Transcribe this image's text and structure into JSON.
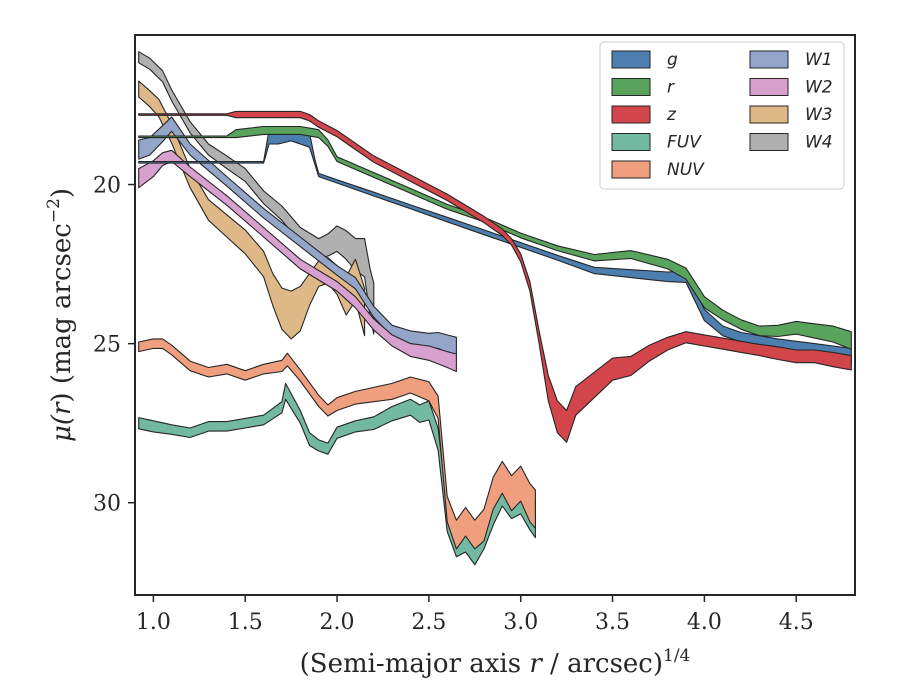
{
  "chart_data": {
    "type": "area",
    "title": "",
    "xlabel": "(Semi-major axis r / arcsec)^1/4",
    "xlabel_parts": {
      "text": "(Semi-major axis ",
      "var": "r",
      "mid": " / arcsec)",
      "sup": "1/4"
    },
    "ylabel": "μ(r) (mag arcsec^−2)",
    "ylabel_parts": {
      "mu": "μ(",
      "var": "r",
      "rest": ") (mag arcsec",
      "sup": "−2",
      "close": ")"
    },
    "xlim": [
      0.9,
      4.82
    ],
    "ylim": [
      32.9,
      15.3
    ],
    "y_inverted": true,
    "grid": false,
    "legend_placement": "top-right",
    "x_ticks": [
      1.0,
      1.5,
      2.0,
      2.5,
      3.0,
      3.5,
      4.0,
      4.5
    ],
    "x_tick_labels": [
      "1.0",
      "1.5",
      "2.0",
      "2.5",
      "3.0",
      "3.5",
      "4.0",
      "4.5"
    ],
    "y_ticks": [
      20,
      25,
      30
    ],
    "y_tick_labels": [
      "20",
      "25",
      "30"
    ],
    "series": [
      {
        "name": "W4",
        "color": "#b0b0b0",
        "x": [
          0.92,
          0.98,
          1.05,
          1.1,
          1.2,
          1.3,
          1.4,
          1.5,
          1.6,
          1.7,
          1.8,
          1.9,
          1.95,
          2.0,
          2.05,
          2.1,
          2.15,
          2.18,
          2.2
        ],
        "y": [
          16.0,
          16.2,
          16.6,
          17.2,
          18.2,
          18.9,
          19.3,
          19.7,
          20.4,
          20.9,
          21.6,
          22.0,
          21.9,
          21.7,
          21.9,
          22.2,
          22.3,
          23.4,
          23.9
        ],
        "w": [
          0.35,
          0.35,
          0.35,
          0.35,
          0.35,
          0.35,
          0.4,
          0.4,
          0.4,
          0.45,
          0.5,
          0.6,
          0.7,
          0.8,
          0.9,
          1.0,
          1.2,
          1.5,
          1.6
        ]
      },
      {
        "name": "W3",
        "color": "#deb887",
        "x": [
          0.92,
          0.98,
          1.03,
          1.1,
          1.2,
          1.3,
          1.4,
          1.5,
          1.6,
          1.65,
          1.7,
          1.75,
          1.8,
          1.85,
          1.9,
          1.95,
          2.0,
          2.05,
          2.1,
          2.15
        ],
        "y": [
          17.0,
          17.3,
          17.6,
          18.4,
          19.8,
          20.8,
          21.3,
          21.8,
          22.5,
          23.3,
          23.9,
          24.1,
          23.9,
          23.3,
          22.8,
          22.7,
          23.0,
          23.5,
          23.0,
          24.0
        ],
        "w": [
          0.5,
          0.5,
          0.55,
          0.6,
          0.6,
          0.65,
          0.7,
          0.75,
          0.8,
          1.0,
          1.3,
          1.5,
          1.4,
          1.0,
          0.8,
          0.8,
          0.9,
          1.2,
          1.3,
          1.5
        ]
      },
      {
        "name": "W1",
        "color": "#93a5c9",
        "x": [
          0.92,
          0.98,
          1.05,
          1.1,
          1.2,
          1.4,
          1.6,
          1.8,
          2.0,
          2.1,
          2.2,
          2.3,
          2.4,
          2.5,
          2.55,
          2.6,
          2.65
        ],
        "y": [
          18.9,
          18.8,
          18.4,
          18.1,
          18.9,
          19.9,
          20.9,
          21.8,
          22.7,
          23.1,
          24.0,
          24.6,
          24.8,
          24.9,
          24.9,
          25.0,
          25.1
        ],
        "w": [
          0.6,
          0.55,
          0.5,
          0.45,
          0.35,
          0.3,
          0.3,
          0.3,
          0.3,
          0.35,
          0.35,
          0.35,
          0.4,
          0.45,
          0.5,
          0.55,
          0.6
        ]
      },
      {
        "name": "W2",
        "color": "#d8a0cf",
        "x": [
          0.92,
          1.0,
          1.05,
          1.1,
          1.2,
          1.4,
          1.6,
          1.8,
          2.0,
          2.1,
          2.2,
          2.3,
          2.4,
          2.5,
          2.6,
          2.65
        ],
        "y": [
          19.8,
          19.5,
          19.2,
          19.1,
          19.6,
          20.5,
          21.5,
          22.5,
          23.2,
          23.7,
          24.4,
          24.9,
          25.2,
          25.3,
          25.5,
          25.6
        ],
        "w": [
          0.6,
          0.5,
          0.4,
          0.35,
          0.3,
          0.3,
          0.3,
          0.3,
          0.3,
          0.35,
          0.35,
          0.35,
          0.4,
          0.45,
          0.5,
          0.55
        ]
      },
      {
        "name": "FUV",
        "color": "#73b8a1",
        "x": [
          0.92,
          1.0,
          1.1,
          1.2,
          1.3,
          1.4,
          1.5,
          1.6,
          1.7,
          1.72,
          1.8,
          1.85,
          1.9,
          1.95,
          2.0,
          2.1,
          2.2,
          2.3,
          2.4,
          2.45,
          2.5,
          2.55,
          2.6,
          2.65,
          2.7,
          2.75,
          2.8,
          2.85,
          2.9,
          2.95,
          3.0,
          3.05,
          3.08
        ],
        "y": [
          27.5,
          27.6,
          27.7,
          27.8,
          27.6,
          27.6,
          27.5,
          27.4,
          27.0,
          26.5,
          27.3,
          28.0,
          28.2,
          28.3,
          27.8,
          27.6,
          27.5,
          27.2,
          27.0,
          27.2,
          27.1,
          28.0,
          30.5,
          31.3,
          31.1,
          31.5,
          31.0,
          30.2,
          29.6,
          30.0,
          29.8,
          30.3,
          30.5
        ],
        "w": [
          0.35,
          0.35,
          0.3,
          0.3,
          0.3,
          0.3,
          0.3,
          0.3,
          0.35,
          0.5,
          0.4,
          0.4,
          0.35,
          0.35,
          0.35,
          0.35,
          0.4,
          0.45,
          0.5,
          0.55,
          0.6,
          0.7,
          0.8,
          0.8,
          0.9,
          0.9,
          0.9,
          1.0,
          1.0,
          1.0,
          1.1,
          1.1,
          1.2
        ]
      },
      {
        "name": "NUV",
        "color": "#ef9f7e",
        "x": [
          0.92,
          1.0,
          1.05,
          1.1,
          1.2,
          1.3,
          1.4,
          1.5,
          1.6,
          1.7,
          1.73,
          1.8,
          1.85,
          1.9,
          1.95,
          2.0,
          2.1,
          2.2,
          2.3,
          2.4,
          2.45,
          2.5,
          2.55,
          2.6,
          2.65,
          2.7,
          2.75,
          2.8,
          2.85,
          2.9,
          2.95,
          3.0,
          3.05,
          3.08
        ],
        "y": [
          25.1,
          25.0,
          25.0,
          25.2,
          25.7,
          25.9,
          25.8,
          26.0,
          25.8,
          25.7,
          25.5,
          26.0,
          26.4,
          26.8,
          27.1,
          26.9,
          26.7,
          26.6,
          26.5,
          26.3,
          26.4,
          26.5,
          27.0,
          30.2,
          31.0,
          30.6,
          31.0,
          30.7,
          29.7,
          29.2,
          29.7,
          29.4,
          30.0,
          30.2
        ],
        "w": [
          0.3,
          0.3,
          0.3,
          0.3,
          0.3,
          0.3,
          0.3,
          0.3,
          0.3,
          0.35,
          0.4,
          0.35,
          0.35,
          0.35,
          0.35,
          0.4,
          0.4,
          0.45,
          0.5,
          0.5,
          0.55,
          0.6,
          0.7,
          0.8,
          0.9,
          0.9,
          0.9,
          1.0,
          1.0,
          1.0,
          1.1,
          1.1,
          1.2,
          1.2
        ]
      },
      {
        "name": "g",
        "color": "#4c7fb0",
        "x": [
          0.92,
          1.0,
          1.2,
          1.4,
          1.6,
          1.63,
          1.68,
          1.75,
          1.8,
          1.85,
          1.88,
          1.9,
          2.0,
          2.2,
          2.4,
          2.6,
          2.8,
          3.0,
          3.2,
          3.4,
          3.6,
          3.8,
          3.9,
          4.0,
          4.1,
          4.2,
          4.3,
          4.4,
          4.5,
          4.6,
          4.7,
          4.8
        ],
        "y": [
          19.3,
          19.3,
          19.3,
          19.3,
          19.3,
          18.5,
          18.5,
          18.4,
          18.5,
          18.6,
          19.3,
          19.7,
          19.9,
          20.3,
          20.7,
          21.1,
          21.5,
          21.9,
          22.3,
          22.7,
          22.8,
          22.9,
          22.9,
          24.1,
          24.6,
          24.8,
          24.9,
          25.0,
          25.1,
          25.2,
          25.3,
          25.4
        ],
        "w": [
          0.05,
          0.05,
          0.05,
          0.05,
          0.05,
          0.45,
          0.45,
          0.45,
          0.45,
          0.45,
          0.15,
          0.1,
          0.1,
          0.12,
          0.12,
          0.14,
          0.15,
          0.15,
          0.15,
          0.2,
          0.25,
          0.3,
          0.35,
          0.35,
          0.3,
          0.3,
          0.3,
          0.3,
          0.35,
          0.4,
          0.45,
          0.5
        ]
      },
      {
        "name": "r",
        "color": "#5aa35d",
        "x": [
          0.92,
          1.0,
          1.2,
          1.4,
          1.45,
          1.6,
          1.8,
          1.9,
          1.95,
          2.0,
          2.2,
          2.4,
          2.6,
          2.8,
          3.0,
          3.2,
          3.4,
          3.6,
          3.8,
          3.9,
          4.0,
          4.1,
          4.2,
          4.3,
          4.4,
          4.5,
          4.6,
          4.7,
          4.8
        ],
        "y": [
          18.5,
          18.5,
          18.5,
          18.5,
          18.4,
          18.3,
          18.3,
          18.4,
          18.7,
          19.2,
          19.7,
          20.2,
          20.7,
          21.1,
          21.6,
          22.0,
          22.3,
          22.2,
          22.5,
          22.8,
          23.7,
          24.1,
          24.4,
          24.6,
          24.6,
          24.5,
          24.6,
          24.7,
          24.9
        ],
        "w": [
          0.05,
          0.05,
          0.05,
          0.05,
          0.25,
          0.25,
          0.25,
          0.25,
          0.2,
          0.15,
          0.15,
          0.15,
          0.15,
          0.15,
          0.15,
          0.15,
          0.2,
          0.25,
          0.3,
          0.35,
          0.35,
          0.3,
          0.3,
          0.3,
          0.35,
          0.4,
          0.45,
          0.5,
          0.55
        ]
      },
      {
        "name": "z",
        "color": "#d1454b",
        "x": [
          0.92,
          1.0,
          1.2,
          1.4,
          1.45,
          1.6,
          1.8,
          1.85,
          1.9,
          2.0,
          2.1,
          2.2,
          2.4,
          2.6,
          2.8,
          2.9,
          2.95,
          3.0,
          3.05,
          3.1,
          3.15,
          3.2,
          3.25,
          3.3,
          3.4,
          3.5,
          3.6,
          3.7,
          3.8,
          3.9,
          4.0,
          4.1,
          4.2,
          4.3,
          4.4,
          4.5,
          4.6,
          4.7,
          4.8
        ],
        "y": [
          17.8,
          17.8,
          17.8,
          17.8,
          17.8,
          17.8,
          17.8,
          17.9,
          18.1,
          18.4,
          18.8,
          19.2,
          19.8,
          20.4,
          21.1,
          21.5,
          21.8,
          22.3,
          23.2,
          24.8,
          26.4,
          27.3,
          27.6,
          26.8,
          26.3,
          25.8,
          25.7,
          25.3,
          25.0,
          24.8,
          24.9,
          25.0,
          25.1,
          25.2,
          25.3,
          25.4,
          25.4,
          25.5,
          25.6
        ],
        "w": [
          0.05,
          0.05,
          0.05,
          0.05,
          0.2,
          0.2,
          0.2,
          0.2,
          0.2,
          0.2,
          0.2,
          0.2,
          0.2,
          0.2,
          0.2,
          0.2,
          0.2,
          0.25,
          0.3,
          0.4,
          0.8,
          1.0,
          1.0,
          0.9,
          0.8,
          0.7,
          0.6,
          0.5,
          0.4,
          0.35,
          0.35,
          0.35,
          0.35,
          0.35,
          0.4,
          0.4,
          0.4,
          0.45,
          0.45
        ]
      }
    ],
    "legend": {
      "col1": [
        {
          "label": "g",
          "color": "#4c7fb0"
        },
        {
          "label": "r",
          "color": "#5aa35d"
        },
        {
          "label": "z",
          "color": "#d1454b"
        },
        {
          "label": "FUV",
          "color": "#73b8a1"
        },
        {
          "label": "NUV",
          "color": "#ef9f7e"
        }
      ],
      "col2": [
        {
          "label": "W1",
          "color": "#93a5c9"
        },
        {
          "label": "W2",
          "color": "#d8a0cf"
        },
        {
          "label": "W3",
          "color": "#deb887"
        },
        {
          "label": "W4",
          "color": "#b0b0b0"
        }
      ]
    }
  }
}
